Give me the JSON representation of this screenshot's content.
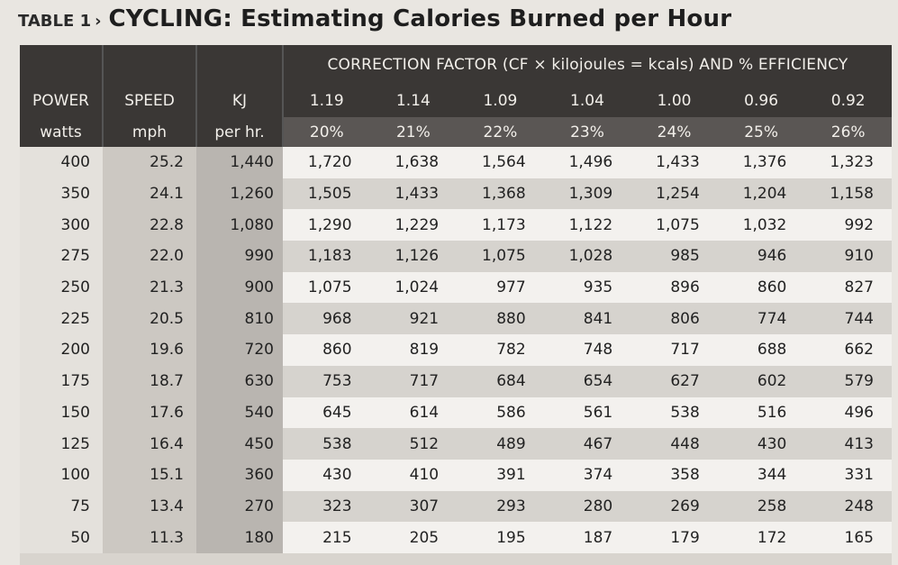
{
  "title": {
    "table_label": "TABLE 1",
    "arrow": "›",
    "main": "CYCLING: Estimating Calories Burned per Hour"
  },
  "header": {
    "correction_label": "CORRECTION FACTOR (CF × kilojoules = kcals) AND % EFFICIENCY",
    "col1": {
      "top": "POWER",
      "bottom": "watts"
    },
    "col2": {
      "top": "SPEED",
      "bottom": "mph"
    },
    "col3": {
      "top": "KJ",
      "bottom": "per hr."
    },
    "factors": [
      "1.19",
      "1.14",
      "1.09",
      "1.04",
      "1.00",
      "0.96",
      "0.92"
    ],
    "efficiencies": [
      "20%",
      "21%",
      "22%",
      "23%",
      "24%",
      "25%",
      "26%"
    ]
  },
  "rows": [
    {
      "power": "400",
      "speed": "25.2",
      "kj": "1,440",
      "kcals": [
        "1,720",
        "1,638",
        "1,564",
        "1,496",
        "1,433",
        "1,376",
        "1,323"
      ]
    },
    {
      "power": "350",
      "speed": "24.1",
      "kj": "1,260",
      "kcals": [
        "1,505",
        "1,433",
        "1,368",
        "1,309",
        "1,254",
        "1,204",
        "1,158"
      ]
    },
    {
      "power": "300",
      "speed": "22.8",
      "kj": "1,080",
      "kcals": [
        "1,290",
        "1,229",
        "1,173",
        "1,122",
        "1,075",
        "1,032",
        "992"
      ]
    },
    {
      "power": "275",
      "speed": "22.0",
      "kj": "990",
      "kcals": [
        "1,183",
        "1,126",
        "1,075",
        "1,028",
        "985",
        "946",
        "910"
      ]
    },
    {
      "power": "250",
      "speed": "21.3",
      "kj": "900",
      "kcals": [
        "1,075",
        "1,024",
        "977",
        "935",
        "896",
        "860",
        "827"
      ]
    },
    {
      "power": "225",
      "speed": "20.5",
      "kj": "810",
      "kcals": [
        "968",
        "921",
        "880",
        "841",
        "806",
        "774",
        "744"
      ]
    },
    {
      "power": "200",
      "speed": "19.6",
      "kj": "720",
      "kcals": [
        "860",
        "819",
        "782",
        "748",
        "717",
        "688",
        "662"
      ]
    },
    {
      "power": "175",
      "speed": "18.7",
      "kj": "630",
      "kcals": [
        "753",
        "717",
        "684",
        "654",
        "627",
        "602",
        "579"
      ]
    },
    {
      "power": "150",
      "speed": "17.6",
      "kj": "540",
      "kcals": [
        "645",
        "614",
        "586",
        "561",
        "538",
        "516",
        "496"
      ]
    },
    {
      "power": "125",
      "speed": "16.4",
      "kj": "450",
      "kcals": [
        "538",
        "512",
        "489",
        "467",
        "448",
        "430",
        "413"
      ]
    },
    {
      "power": "100",
      "speed": "15.1",
      "kj": "360",
      "kcals": [
        "430",
        "410",
        "391",
        "374",
        "358",
        "344",
        "331"
      ]
    },
    {
      "power": "75",
      "speed": "13.4",
      "kj": "270",
      "kcals": [
        "323",
        "307",
        "293",
        "280",
        "269",
        "258",
        "248"
      ]
    },
    {
      "power": "50",
      "speed": "11.3",
      "kj": "180",
      "kcals": [
        "215",
        "205",
        "195",
        "187",
        "179",
        "172",
        "165"
      ]
    }
  ]
}
